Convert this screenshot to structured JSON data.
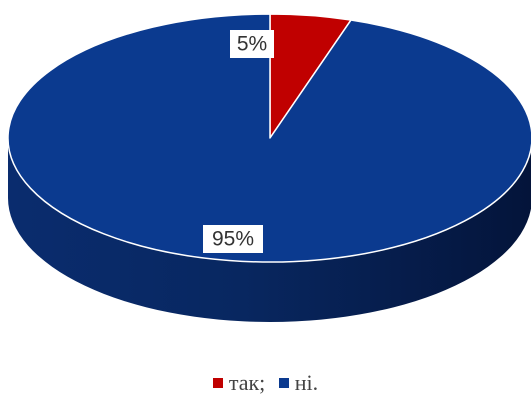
{
  "chart_data": {
    "type": "pie",
    "title": "",
    "style": "3d",
    "legend_position": "bottom",
    "slices": [
      {
        "name": "так;",
        "value": 5,
        "label": "5%",
        "color": "#C00000"
      },
      {
        "name": "ні.",
        "value": 95,
        "label": "95%",
        "color": "#0B3A8F"
      }
    ]
  }
}
